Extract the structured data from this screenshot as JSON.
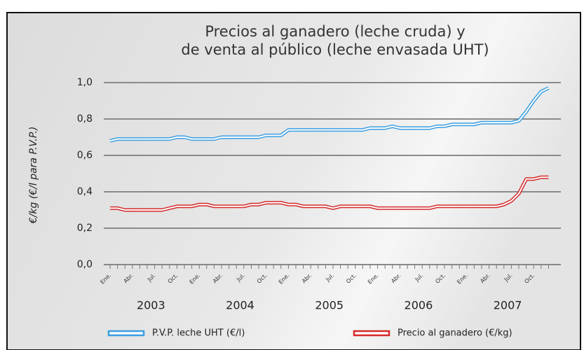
{
  "chart_data": {
    "type": "line",
    "title": [
      "Precios al ganadero (leche cruda) y",
      "de venta al público (leche envasada UHT)"
    ],
    "y_label": "€/kg (€/l para P.V.P.)",
    "categories": [
      "Ene.",
      null,
      null,
      "Abr.",
      null,
      null,
      "Jul.",
      null,
      null,
      "Oct.",
      null,
      null,
      "Ene.",
      null,
      null,
      "Abr.",
      null,
      null,
      "Jul.",
      null,
      null,
      "Oct.",
      null,
      null,
      "Ene.",
      null,
      null,
      "Abr.",
      null,
      null,
      "Jul.",
      null,
      null,
      "Oct.",
      null,
      null,
      "Ene.",
      null,
      null,
      "Abr.",
      null,
      null,
      "Jul.",
      null,
      null,
      "Oct.",
      null,
      null,
      "Ene.",
      null,
      null,
      "Abr.",
      null,
      null,
      "Jul.",
      null,
      null,
      "Oct.",
      null,
      null
    ],
    "years": [
      "2003",
      "2004",
      "2005",
      "2006",
      "2007"
    ],
    "series": [
      {
        "name": "P.V.P. leche UHT (€/l)",
        "color": "#3a9ee0",
        "values": [
          0.68,
          0.69,
          0.69,
          0.69,
          0.69,
          0.69,
          0.69,
          0.69,
          0.69,
          0.7,
          0.7,
          0.69,
          0.69,
          0.69,
          0.69,
          0.7,
          0.7,
          0.7,
          0.7,
          0.7,
          0.7,
          0.71,
          0.71,
          0.71,
          0.74,
          0.74,
          0.74,
          0.74,
          0.74,
          0.74,
          0.74,
          0.74,
          0.74,
          0.74,
          0.74,
          0.75,
          0.75,
          0.75,
          0.76,
          0.75,
          0.75,
          0.75,
          0.75,
          0.75,
          0.76,
          0.76,
          0.77,
          0.77,
          0.77,
          0.77,
          0.78,
          0.78,
          0.78,
          0.78,
          0.78,
          0.79,
          0.84,
          0.9,
          0.95,
          0.97
        ]
      },
      {
        "name": "Precio al ganadero (€/kg)",
        "color": "#d42a2a",
        "values": [
          0.31,
          0.31,
          0.3,
          0.3,
          0.3,
          0.3,
          0.3,
          0.3,
          0.31,
          0.32,
          0.32,
          0.32,
          0.33,
          0.33,
          0.32,
          0.32,
          0.32,
          0.32,
          0.32,
          0.33,
          0.33,
          0.34,
          0.34,
          0.34,
          0.33,
          0.33,
          0.32,
          0.32,
          0.32,
          0.32,
          0.31,
          0.32,
          0.32,
          0.32,
          0.32,
          0.32,
          0.31,
          0.31,
          0.31,
          0.31,
          0.31,
          0.31,
          0.31,
          0.31,
          0.32,
          0.32,
          0.32,
          0.32,
          0.32,
          0.32,
          0.32,
          0.32,
          0.32,
          0.33,
          0.35,
          0.39,
          0.47,
          0.47,
          0.48,
          0.48
        ]
      }
    ],
    "ylim": [
      0,
      1.0
    ],
    "yticks": [
      {
        "value": 0,
        "label": "0,0"
      },
      {
        "value": 0.2,
        "label": "0,2"
      },
      {
        "value": 0.4,
        "label": "0,4"
      },
      {
        "value": 0.6,
        "label": "0,6"
      },
      {
        "value": 0.8,
        "label": "0,8"
      },
      {
        "value": 1.0,
        "label": "1,0"
      }
    ],
    "grid": true,
    "legend": "bottom"
  }
}
